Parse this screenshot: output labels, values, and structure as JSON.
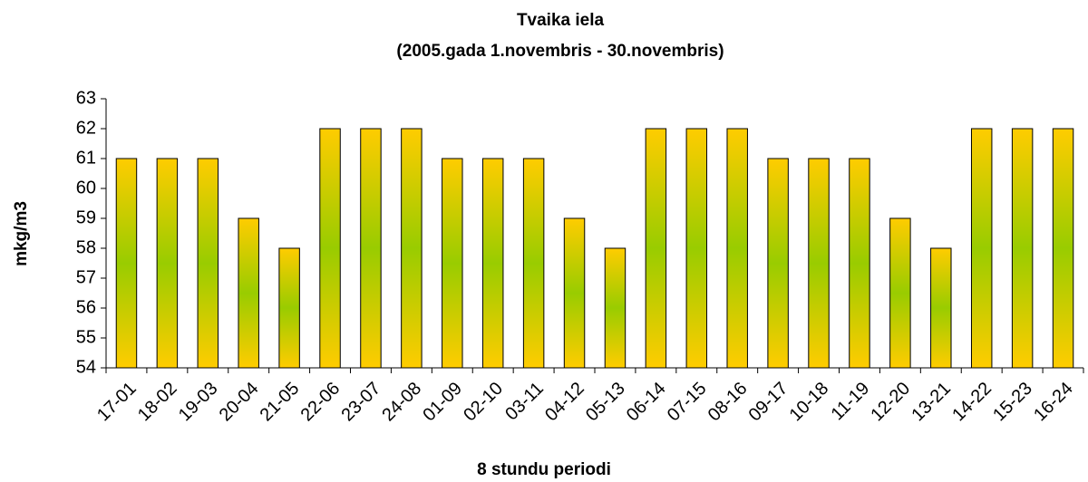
{
  "chart_data": {
    "type": "bar",
    "title": "Tvaika iela",
    "subtitle": "(2005.gada 1.novembris - 30.novembris)",
    "x_label": "8 stundu periodi",
    "y_label": "mkg/m3",
    "categories": [
      "17-01",
      "18-02",
      "19-03",
      "20-04",
      "21-05",
      "22-06",
      "23-07",
      "24-08",
      "01-09",
      "02-10",
      "03-11",
      "04-12",
      "05-13",
      "06-14",
      "07-15",
      "08-16",
      "09-17",
      "10-18",
      "11-19",
      "12-20",
      "13-21",
      "14-22",
      "15-23",
      "16-24"
    ],
    "values": [
      61,
      61,
      61,
      59,
      58,
      62,
      62,
      62,
      61,
      61,
      61,
      59,
      58,
      62,
      62,
      62,
      61,
      61,
      61,
      59,
      58,
      62,
      62,
      62
    ],
    "gradient": [
      "#ffcc00",
      "#99cc00",
      "#ffcc00"
    ],
    "ylim": [
      54,
      63
    ],
    "yticks": [
      54,
      55,
      56,
      57,
      58,
      59,
      60,
      61,
      62,
      63
    ],
    "grid": false
  }
}
